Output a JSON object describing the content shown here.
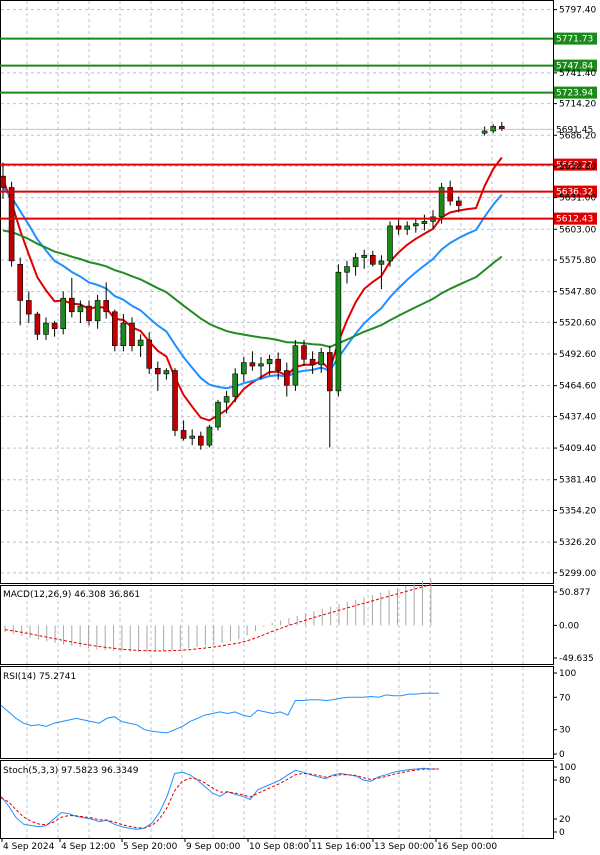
{
  "chart_data": [
    {
      "type": "candlestick",
      "panel": "price",
      "ylim": [
        5290,
        5805
      ],
      "y_ticks": [
        "5797.40",
        "5741.40",
        "5714.20",
        "5686.20",
        "5658.80",
        "5631.00",
        "5603.00",
        "5575.80",
        "5547.80",
        "5520.60",
        "5492.60",
        "5464.60",
        "5437.40",
        "5409.40",
        "5381.40",
        "5354.20",
        "5326.20",
        "5299.00"
      ],
      "x_ticks": [
        "4 Sep 2024",
        "4 Sep 12:00",
        "5 Sep 20:00",
        "9 Sep 00:00",
        "10 Sep 08:00",
        "11 Sep 16:00",
        "13 Sep 00:00",
        "16 Sep 00:00"
      ],
      "levels": [
        {
          "value": 5771.73,
          "label": "5771.73",
          "color": "#1a8a1a"
        },
        {
          "value": 5747.84,
          "label": "5747.84",
          "color": "#1a8a1a"
        },
        {
          "value": 5723.94,
          "label": "5723.94",
          "color": "#1a8a1a"
        },
        {
          "value": 5691.45,
          "label": "5691.45",
          "color": "#8a8a8a"
        },
        {
          "value": 5660.22,
          "label": "5660.22",
          "color": "#e00000"
        },
        {
          "value": 5636.32,
          "label": "5636.32",
          "color": "#e00000"
        },
        {
          "value": 5612.43,
          "label": "5612.43",
          "color": "#e00000"
        }
      ],
      "candles": [
        [
          5650,
          5662,
          5630,
          5640
        ],
        [
          5640,
          5645,
          5570,
          5575
        ],
        [
          5572,
          5578,
          5518,
          5540
        ],
        [
          5540,
          5548,
          5520,
          5528
        ],
        [
          5528,
          5530,
          5505,
          5510
        ],
        [
          5510,
          5525,
          5505,
          5520
        ],
        [
          5520,
          5522,
          5508,
          5515
        ],
        [
          5515,
          5548,
          5510,
          5542
        ],
        [
          5542,
          5560,
          5525,
          5530
        ],
        [
          5530,
          5540,
          5520,
          5535
        ],
        [
          5535,
          5540,
          5518,
          5522
        ],
        [
          5522,
          5545,
          5515,
          5540
        ],
        [
          5540,
          5556,
          5524,
          5530
        ],
        [
          5530,
          5532,
          5495,
          5500
        ],
        [
          5500,
          5528,
          5495,
          5520
        ],
        [
          5520,
          5525,
          5495,
          5500
        ],
        [
          5500,
          5510,
          5490,
          5505
        ],
        [
          5505,
          5512,
          5475,
          5480
        ],
        [
          5480,
          5486,
          5460,
          5475
        ],
        [
          5475,
          5480,
          5470,
          5478
        ],
        [
          5478,
          5480,
          5420,
          5425
        ],
        [
          5425,
          5434,
          5416,
          5418
        ],
        [
          5418,
          5426,
          5412,
          5420
        ],
        [
          5420,
          5424,
          5408,
          5412
        ],
        [
          5412,
          5430,
          5410,
          5428
        ],
        [
          5428,
          5452,
          5425,
          5450
        ],
        [
          5450,
          5460,
          5440,
          5455
        ],
        [
          5455,
          5480,
          5450,
          5475
        ],
        [
          5475,
          5490,
          5468,
          5485
        ],
        [
          5485,
          5495,
          5478,
          5482
        ],
        [
          5482,
          5490,
          5470,
          5484
        ],
        [
          5484,
          5492,
          5474,
          5488
        ],
        [
          5488,
          5494,
          5470,
          5478
        ],
        [
          5478,
          5485,
          5455,
          5465
        ],
        [
          5465,
          5505,
          5460,
          5500
        ],
        [
          5500,
          5505,
          5482,
          5488
        ],
        [
          5488,
          5495,
          5475,
          5483
        ],
        [
          5483,
          5498,
          5476,
          5494
        ],
        [
          5494,
          5500,
          5410,
          5460
        ],
        [
          5460,
          5572,
          5455,
          5565
        ],
        [
          5565,
          5575,
          5555,
          5570
        ],
        [
          5570,
          5582,
          5562,
          5578
        ],
        [
          5578,
          5585,
          5568,
          5580
        ],
        [
          5580,
          5584,
          5570,
          5572
        ],
        [
          5572,
          5580,
          5550,
          5575
        ],
        [
          5575,
          5610,
          5570,
          5606
        ],
        [
          5606,
          5612,
          5598,
          5603
        ],
        [
          5603,
          5610,
          5598,
          5606
        ],
        [
          5606,
          5612,
          5600,
          5608
        ],
        [
          5608,
          5616,
          5602,
          5610
        ],
        [
          5610,
          5620,
          5604,
          5614
        ],
        [
          5614,
          5644,
          5608,
          5640
        ],
        [
          5640,
          5646,
          5624,
          5628
        ],
        [
          5628,
          5632,
          5618,
          5624
        ],
        [
          null,
          null,
          null,
          null
        ],
        [
          null,
          null,
          null,
          null
        ],
        [
          5688,
          5694,
          5686,
          5690
        ],
        [
          5690,
          5696,
          5688,
          5694
        ],
        [
          5694,
          5698,
          5690,
          5692
        ]
      ],
      "colors": {
        "bull": "#1a8a1a",
        "bear": "#c00000",
        "ma_fast": "#e00000",
        "ma_mid": "#1e90ff",
        "ma_slow": "#228b22"
      }
    },
    {
      "type": "bar",
      "panel": "macd",
      "title": "MACD(12,26,9) 46.308 36.861",
      "y_ticks": [
        "50.877",
        "0.00",
        "-49.635"
      ],
      "ylim": [
        -49.635,
        50.877
      ]
    },
    {
      "type": "line",
      "panel": "rsi",
      "title": "RSI(14) 75.2741",
      "y_ticks": [
        "100",
        "70",
        "30",
        "0"
      ],
      "ylim": [
        0,
        100
      ]
    },
    {
      "type": "line",
      "panel": "stoch",
      "title": "Stoch(5,3,3) 97.5823 96.3349",
      "y_ticks": [
        "100",
        "80",
        "20",
        "0"
      ],
      "ylim": [
        0,
        100
      ]
    }
  ]
}
